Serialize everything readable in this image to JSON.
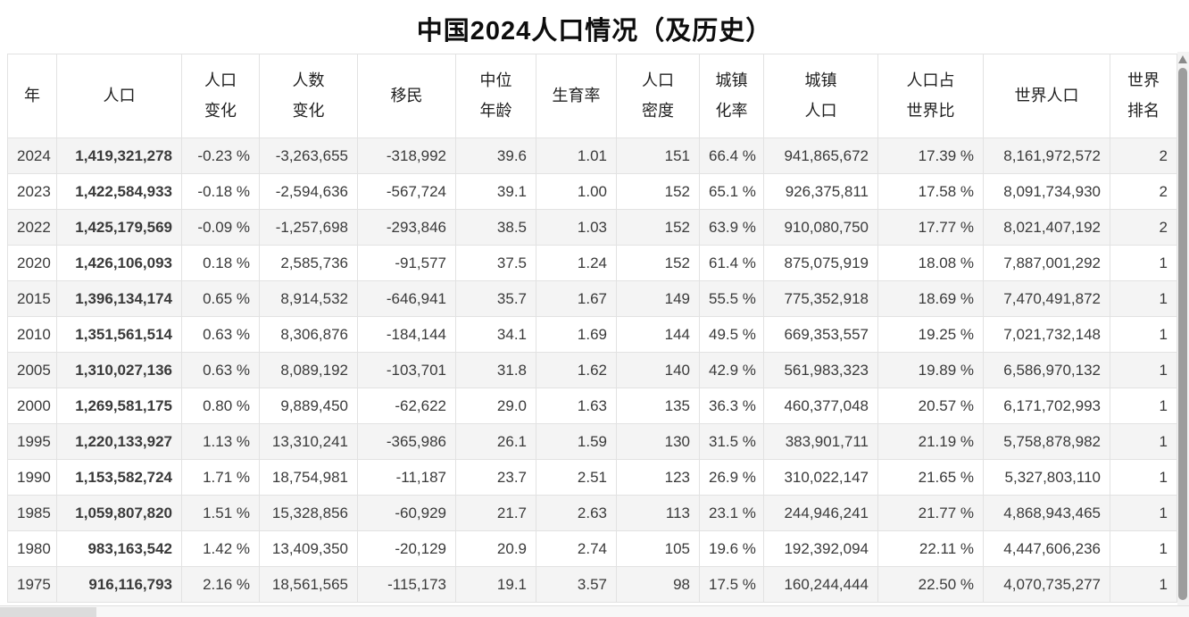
{
  "title": "中国2024人口情况（及历史）",
  "chart_data": {
    "type": "table",
    "title": "中国2024人口情况（及历史）",
    "columns": [
      "年",
      "人口",
      "人口变化",
      "人数变化",
      "移民",
      "中位年龄",
      "生育率",
      "人口密度",
      "城镇化率",
      "城镇人口",
      "人口占世界比",
      "世界人口",
      "世界排名"
    ],
    "header_lines": [
      [
        "年"
      ],
      [
        "人口"
      ],
      [
        "人口",
        "变化"
      ],
      [
        "人数",
        "变化"
      ],
      [
        "移民"
      ],
      [
        "中位",
        "年龄"
      ],
      [
        "生育率"
      ],
      [
        "人口",
        "密度"
      ],
      [
        "城镇",
        "化率"
      ],
      [
        "城镇",
        "人口"
      ],
      [
        "人口占",
        "世界比"
      ],
      [
        "世界人口"
      ],
      [
        "世界",
        "排名"
      ]
    ],
    "rows": [
      [
        "2024",
        "1,419,321,278",
        "-0.23 %",
        "-3,263,655",
        "-318,992",
        "39.6",
        "1.01",
        "151",
        "66.4 %",
        "941,865,672",
        "17.39 %",
        "8,161,972,572",
        "2"
      ],
      [
        "2023",
        "1,422,584,933",
        "-0.18 %",
        "-2,594,636",
        "-567,724",
        "39.1",
        "1.00",
        "152",
        "65.1 %",
        "926,375,811",
        "17.58 %",
        "8,091,734,930",
        "2"
      ],
      [
        "2022",
        "1,425,179,569",
        "-0.09 %",
        "-1,257,698",
        "-293,846",
        "38.5",
        "1.03",
        "152",
        "63.9 %",
        "910,080,750",
        "17.77 %",
        "8,021,407,192",
        "2"
      ],
      [
        "2020",
        "1,426,106,093",
        "0.18 %",
        "2,585,736",
        "-91,577",
        "37.5",
        "1.24",
        "152",
        "61.4 %",
        "875,075,919",
        "18.08 %",
        "7,887,001,292",
        "1"
      ],
      [
        "2015",
        "1,396,134,174",
        "0.65 %",
        "8,914,532",
        "-646,941",
        "35.7",
        "1.67",
        "149",
        "55.5 %",
        "775,352,918",
        "18.69 %",
        "7,470,491,872",
        "1"
      ],
      [
        "2010",
        "1,351,561,514",
        "0.63 %",
        "8,306,876",
        "-184,144",
        "34.1",
        "1.69",
        "144",
        "49.5 %",
        "669,353,557",
        "19.25 %",
        "7,021,732,148",
        "1"
      ],
      [
        "2005",
        "1,310,027,136",
        "0.63 %",
        "8,089,192",
        "-103,701",
        "31.8",
        "1.62",
        "140",
        "42.9 %",
        "561,983,323",
        "19.89 %",
        "6,586,970,132",
        "1"
      ],
      [
        "2000",
        "1,269,581,175",
        "0.80 %",
        "9,889,450",
        "-62,622",
        "29.0",
        "1.63",
        "135",
        "36.3 %",
        "460,377,048",
        "20.57 %",
        "6,171,702,993",
        "1"
      ],
      [
        "1995",
        "1,220,133,927",
        "1.13 %",
        "13,310,241",
        "-365,986",
        "26.1",
        "1.59",
        "130",
        "31.5 %",
        "383,901,711",
        "21.19 %",
        "5,758,878,982",
        "1"
      ],
      [
        "1990",
        "1,153,582,724",
        "1.71 %",
        "18,754,981",
        "-11,187",
        "23.7",
        "2.51",
        "123",
        "26.9 %",
        "310,022,147",
        "21.65 %",
        "5,327,803,110",
        "1"
      ],
      [
        "1985",
        "1,059,807,820",
        "1.51 %",
        "15,328,856",
        "-60,929",
        "21.7",
        "2.63",
        "113",
        "23.1 %",
        "244,946,241",
        "21.77 %",
        "4,868,943,465",
        "1"
      ],
      [
        "1980",
        "983,163,542",
        "1.42 %",
        "13,409,350",
        "-20,129",
        "20.9",
        "2.74",
        "105",
        "19.6 %",
        "192,392,094",
        "22.11 %",
        "4,447,606,236",
        "1"
      ],
      [
        "1975",
        "916,116,793",
        "2.16 %",
        "18,561,565",
        "-115,173",
        "19.1",
        "3.57",
        "98",
        "17.5 %",
        "160,244,444",
        "22.50 %",
        "4,070,735,277",
        "1"
      ]
    ]
  }
}
